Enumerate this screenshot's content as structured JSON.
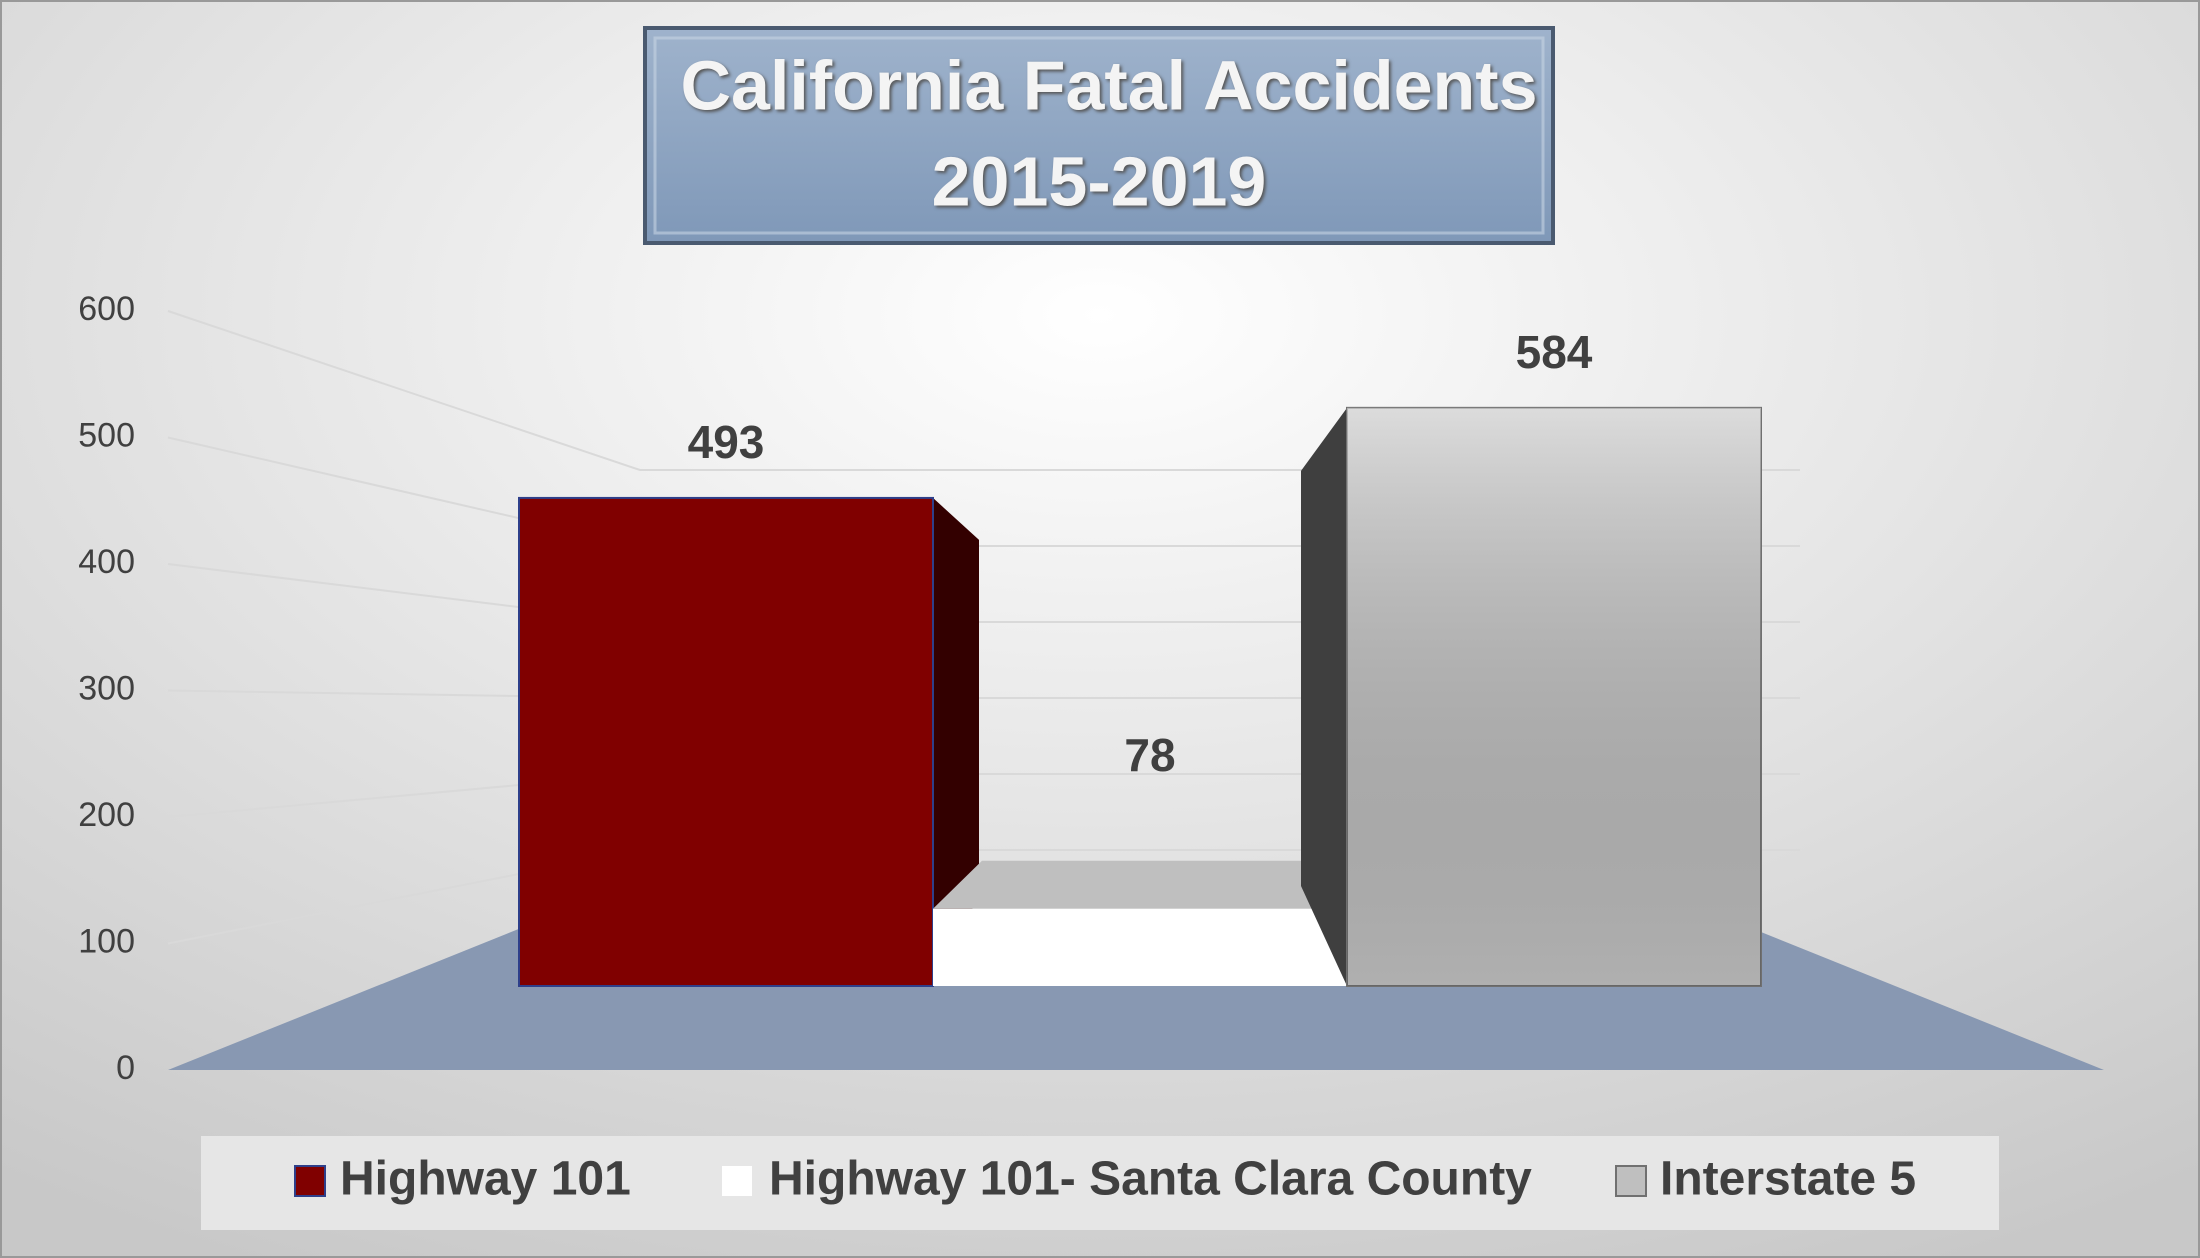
{
  "chart_data": {
    "type": "bar3d",
    "title": [
      "California Fatal Accidents",
      "2015-2019"
    ],
    "categories": [
      null
    ],
    "series": [
      {
        "name": "Highway 101",
        "color": "#800000",
        "values": [
          493
        ]
      },
      {
        "name": "Highway 101- Santa Clara County",
        "color": "#ffffff",
        "values": [
          78
        ]
      },
      {
        "name": "Interstate 5",
        "color": "#bfbfbf",
        "values": [
          584
        ]
      }
    ],
    "ylim": [
      0,
      600
    ],
    "yticks": [
      0,
      100,
      200,
      300,
      400,
      500,
      600
    ],
    "grid": true,
    "legend": "bottom"
  }
}
